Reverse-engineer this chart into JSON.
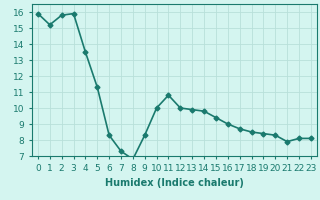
{
  "x": [
    0,
    1,
    2,
    3,
    4,
    5,
    6,
    7,
    8,
    9,
    10,
    11,
    12,
    13,
    14,
    15,
    16,
    17,
    18,
    19,
    20,
    21,
    22,
    23
  ],
  "y": [
    15.9,
    15.2,
    15.8,
    15.9,
    13.5,
    11.3,
    8.3,
    7.3,
    6.8,
    8.3,
    10.0,
    10.8,
    10.0,
    9.9,
    9.8,
    9.4,
    9.0,
    8.7,
    8.5,
    8.4,
    8.3,
    7.9,
    8.1,
    8.1
  ],
  "title": "",
  "xlabel": "Humidex (Indice chaleur)",
  "ylabel": "",
  "line_color": "#1a7a6e",
  "marker": "D",
  "marker_size": 2.5,
  "bg_color": "#d4f5f0",
  "grid_color": "#b8e0da",
  "ylim": [
    7,
    16.5
  ],
  "yticks": [
    7,
    8,
    9,
    10,
    11,
    12,
    13,
    14,
    15,
    16
  ],
  "xlim": [
    -0.5,
    23.5
  ],
  "xticks": [
    0,
    1,
    2,
    3,
    4,
    5,
    6,
    7,
    8,
    9,
    10,
    11,
    12,
    13,
    14,
    15,
    16,
    17,
    18,
    19,
    20,
    21,
    22,
    23
  ],
  "xlabel_fontsize": 7,
  "tick_fontsize": 6.5,
  "linewidth": 1.2
}
